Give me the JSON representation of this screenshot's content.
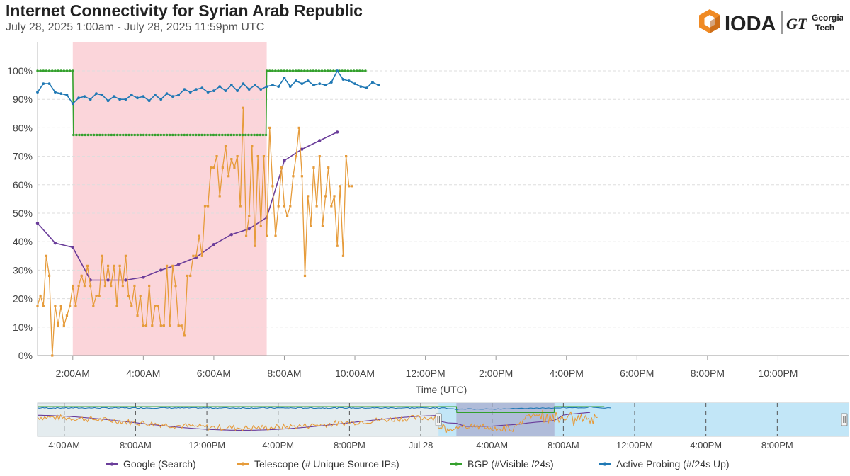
{
  "header": {
    "title": "Internet Connectivity for Syrian Arab Republic",
    "subtitle": "July 28, 2025 1:00am - July 28, 2025 11:59pm UTC"
  },
  "logo": {
    "ioda": "IODA",
    "gt_mark": "GT",
    "gt_line1": "Georgia",
    "gt_line2": "Tech"
  },
  "colors": {
    "google": "#6a3d9a",
    "telescope": "#e69b3a",
    "bgp": "#33a02c",
    "probing": "#1f78b4",
    "outage": "#fbd5da"
  },
  "chart_data": [
    {
      "type": "line",
      "title": "Internet Connectivity for Syrian Arab Republic",
      "xlabel": "Time (UTC)",
      "ylabel": "",
      "x_unit": "hours since 00:00 UTC July 28, 2025",
      "xlim": [
        1,
        24
      ],
      "ylim": [
        0,
        100
      ],
      "yticks": [
        0,
        10,
        20,
        30,
        40,
        50,
        60,
        70,
        80,
        90,
        100
      ],
      "ytick_labels": [
        "0%",
        "10%",
        "20%",
        "30%",
        "40%",
        "50%",
        "60%",
        "70%",
        "80%",
        "90%",
        "100%"
      ],
      "xticks": [
        2,
        4,
        6,
        8,
        10,
        12,
        14,
        16,
        18,
        20,
        22
      ],
      "xtick_labels": [
        "2:00AM",
        "4:00AM",
        "6:00AM",
        "8:00AM",
        "10:00AM",
        "12:00PM",
        "2:00PM",
        "4:00PM",
        "6:00PM",
        "8:00PM",
        "10:00PM"
      ],
      "outage_region": [
        2.0,
        7.5
      ],
      "series": [
        {
          "name": "Google (Search)",
          "x": [
            1.0,
            1.5,
            2.0,
            2.5,
            3.0,
            3.5,
            4.0,
            4.5,
            5.0,
            5.5,
            6.0,
            6.5,
            7.0,
            7.5,
            8.0,
            8.5,
            9.0,
            9.5
          ],
          "values": [
            46.5,
            39.5,
            38,
            26.5,
            26.5,
            26.5,
            27.5,
            30,
            32,
            34.5,
            39,
            42.5,
            44.5,
            48.5,
            68.5,
            72.5,
            75.5,
            78.5
          ]
        },
        {
          "name": "Telescope (# Unique Source IPs)",
          "x": [
            1.0,
            1.083,
            1.167,
            1.25,
            1.333,
            1.417,
            1.5,
            1.583,
            1.667,
            1.75,
            1.833,
            1.917,
            2.0,
            2.083,
            2.167,
            2.25,
            2.333,
            2.417,
            2.5,
            2.583,
            2.667,
            2.75,
            2.833,
            2.917,
            3.0,
            3.083,
            3.167,
            3.25,
            3.333,
            3.417,
            3.5,
            3.583,
            3.667,
            3.75,
            3.833,
            3.917,
            4.0,
            4.083,
            4.167,
            4.25,
            4.333,
            4.417,
            4.5,
            4.583,
            4.667,
            4.75,
            4.833,
            4.917,
            5.0,
            5.083,
            5.167,
            5.25,
            5.333,
            5.417,
            5.5,
            5.583,
            5.667,
            5.75,
            5.833,
            5.917,
            6.0,
            6.083,
            6.167,
            6.25,
            6.333,
            6.417,
            6.5,
            6.583,
            6.667,
            6.75,
            6.833,
            6.917,
            7.0,
            7.083,
            7.167,
            7.25,
            7.333,
            7.417,
            7.5,
            7.583,
            7.667,
            7.75,
            7.833,
            7.917,
            8.0,
            8.083,
            8.167,
            8.25,
            8.333,
            8.417,
            8.5,
            8.583,
            8.667,
            8.75,
            8.833,
            8.917,
            9.0,
            9.083,
            9.167,
            9.25,
            9.333,
            9.417,
            9.5,
            9.583,
            9.667,
            9.75,
            9.833,
            9.917
          ],
          "values": [
            17.5,
            21,
            17.5,
            35,
            28,
            0,
            17.5,
            10.5,
            17.5,
            10.5,
            14,
            17.5,
            24.5,
            17.5,
            24.5,
            28,
            24.5,
            31.5,
            24.5,
            17.5,
            21,
            21,
            35,
            24.5,
            31.5,
            24.5,
            31.5,
            17.5,
            31.5,
            24.5,
            35,
            21,
            17.5,
            24.5,
            14,
            21,
            10.5,
            10.5,
            24.5,
            10.5,
            17.5,
            17.5,
            10.5,
            10.5,
            31.5,
            10.5,
            31.5,
            24.5,
            10.5,
            10.5,
            7,
            28,
            28,
            35,
            35,
            42,
            35,
            52.5,
            52.5,
            66,
            66,
            70,
            56,
            66,
            73.5,
            63,
            69,
            66,
            70,
            52.5,
            87,
            42,
            49,
            73.5,
            38.5,
            70,
            45.5,
            70,
            42,
            80,
            59.5,
            42,
            52.5,
            66,
            52.5,
            49,
            52.5,
            63,
            70,
            80,
            63,
            28,
            56,
            45.5,
            66,
            52.5,
            70,
            45.5,
            56,
            66,
            52.5,
            56,
            38.5,
            59.5,
            35,
            70,
            59.5,
            59.5
          ]
        },
        {
          "name": "BGP (#Visible /24s)",
          "x": [
            1.0,
            2.0,
            2.02,
            7.48,
            7.5,
            10.3
          ],
          "values": [
            100,
            100,
            77.5,
            77.5,
            100,
            100
          ]
        },
        {
          "name": "Active Probing (#/24s Up)",
          "x": [
            1.0,
            1.167,
            1.333,
            1.5,
            1.667,
            1.833,
            2.0,
            2.167,
            2.333,
            2.5,
            2.667,
            2.833,
            3.0,
            3.167,
            3.333,
            3.5,
            3.667,
            3.833,
            4.0,
            4.167,
            4.333,
            4.5,
            4.667,
            4.833,
            5.0,
            5.167,
            5.333,
            5.5,
            5.667,
            5.833,
            6.0,
            6.167,
            6.333,
            6.5,
            6.667,
            6.833,
            7.0,
            7.167,
            7.333,
            7.5,
            7.667,
            7.833,
            8.0,
            8.167,
            8.333,
            8.5,
            8.667,
            8.833,
            9.0,
            9.167,
            9.333,
            9.5,
            9.667,
            9.833,
            10.0,
            10.167,
            10.333,
            10.5,
            10.667
          ],
          "values": [
            92.5,
            95.5,
            95.5,
            92.5,
            92,
            91.5,
            88.5,
            90.5,
            91,
            90,
            92,
            91.5,
            89.5,
            91,
            90,
            90,
            91.5,
            90.5,
            91,
            89.5,
            91.5,
            90,
            92,
            91,
            91.5,
            93.5,
            92.5,
            93.5,
            94,
            92.5,
            93,
            94.5,
            93,
            95,
            93,
            95.5,
            93.5,
            95,
            93.5,
            94.5,
            95,
            94.5,
            97.5,
            94.5,
            96.5,
            95.5,
            96.5,
            95,
            95.5,
            95,
            96,
            100,
            97,
            96.5,
            95.5,
            94.5,
            94,
            96,
            95
          ]
        }
      ]
    },
    {
      "type": "line",
      "title": "",
      "x_unit": "hours since 00:00 UTC July 28, 2025",
      "xlim": [
        -21.5,
        24
      ],
      "xticks": [
        -20,
        -16,
        -12,
        -8,
        -4,
        0,
        4,
        8,
        12,
        16,
        20
      ],
      "xtick_labels": [
        "4:00AM",
        "8:00AM",
        "12:00PM",
        "4:00PM",
        "8:00PM",
        "Jul 28",
        "4:00AM",
        "8:00AM",
        "12:00PM",
        "4:00PM",
        "8:00PM"
      ],
      "selection": [
        1,
        24
      ],
      "outage_region": [
        2.0,
        7.5
      ],
      "legend": [
        "Google (Search)",
        "Telescope (# Unique Source IPs)",
        "BGP (#Visible /24s)",
        "Active Probing (#/24s Up)"
      ],
      "legend_position": "bottom"
    }
  ]
}
